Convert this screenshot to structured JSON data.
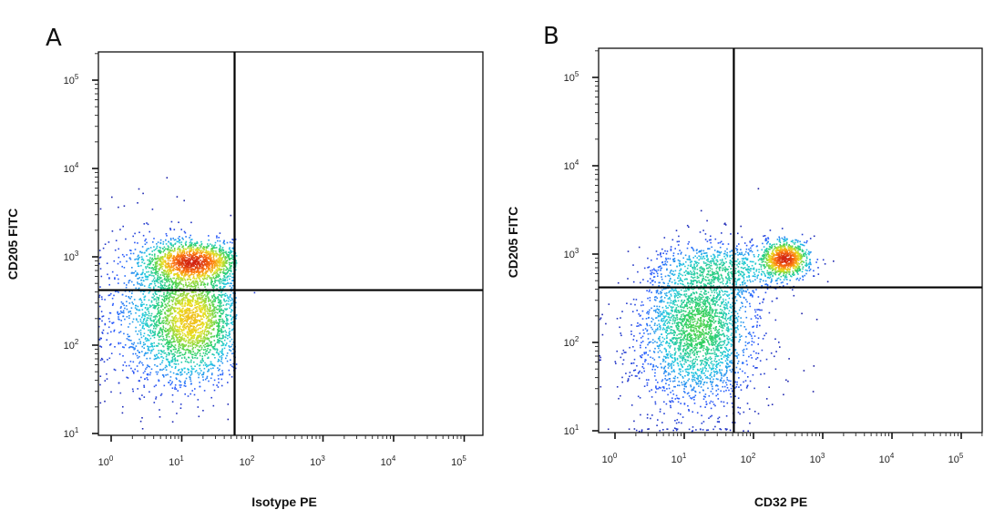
{
  "chart_data": [
    {
      "type": "scatter",
      "panel_label": "A",
      "xlabel": "Isotype PE",
      "ylabel": "CD205 FITC",
      "x_scale": "log",
      "y_scale": "log",
      "xlim": [
        0.66,
        180000
      ],
      "ylim": [
        10,
        210000
      ],
      "x_ticks": [
        {
          "base": "10",
          "exp": "0"
        },
        {
          "base": "10",
          "exp": "1"
        },
        {
          "base": "10",
          "exp": "2"
        },
        {
          "base": "10",
          "exp": "3"
        },
        {
          "base": "10",
          "exp": "4"
        },
        {
          "base": "10",
          "exp": "5"
        }
      ],
      "y_ticks": [
        {
          "base": "10",
          "exp": "1"
        },
        {
          "base": "10",
          "exp": "2"
        },
        {
          "base": "10",
          "exp": "3"
        },
        {
          "base": "10",
          "exp": "4"
        },
        {
          "base": "10",
          "exp": "5"
        }
      ],
      "quadrant_gate": {
        "x": 56,
        "y": 420
      },
      "color_map": [
        "#1a1aa0",
        "#2a5cff",
        "#20c8e0",
        "#30d060",
        "#e8e020",
        "#ff7a10",
        "#d02010"
      ],
      "populations": [
        {
          "center_x": 14,
          "center_y": 900,
          "spread_x_decades": 0.35,
          "spread_y_decades": 0.12,
          "weight": 0.3
        },
        {
          "center_x": 14,
          "center_y": 200,
          "spread_x_decades": 0.35,
          "spread_y_decades": 0.35,
          "weight": 0.55
        },
        {
          "center_x": 3,
          "center_y": 250,
          "spread_x_decades": 0.4,
          "spread_y_decades": 0.5,
          "weight": 0.15
        }
      ],
      "grid": false
    },
    {
      "type": "scatter",
      "panel_label": "B",
      "xlabel": "CD32 PE",
      "ylabel": "CD205 FITC",
      "x_scale": "log",
      "y_scale": "log",
      "xlim": [
        0.58,
        200000
      ],
      "ylim": [
        10,
        210000
      ],
      "x_ticks": [
        {
          "base": "10",
          "exp": "0"
        },
        {
          "base": "10",
          "exp": "1"
        },
        {
          "base": "10",
          "exp": "2"
        },
        {
          "base": "10",
          "exp": "3"
        },
        {
          "base": "10",
          "exp": "4"
        },
        {
          "base": "10",
          "exp": "5"
        }
      ],
      "y_ticks": [
        {
          "base": "10",
          "exp": "1"
        },
        {
          "base": "10",
          "exp": "2"
        },
        {
          "base": "10",
          "exp": "3"
        },
        {
          "base": "10",
          "exp": "4"
        },
        {
          "base": "10",
          "exp": "5"
        }
      ],
      "quadrant_gate": {
        "x": 52,
        "y": 420
      },
      "color_map": [
        "#1a1aa0",
        "#2a5cff",
        "#20c8e0",
        "#30d060",
        "#e8e020",
        "#ff7a10",
        "#d02010"
      ],
      "populations": [
        {
          "center_x": 280,
          "center_y": 900,
          "spread_x_decades": 0.18,
          "spread_y_decades": 0.11,
          "weight": 0.2
        },
        {
          "center_x": 40,
          "center_y": 700,
          "spread_x_decades": 0.5,
          "spread_y_decades": 0.15,
          "weight": 0.15
        },
        {
          "center_x": 16,
          "center_y": 160,
          "spread_x_decades": 0.4,
          "spread_y_decades": 0.4,
          "weight": 0.55
        },
        {
          "center_x": 10,
          "center_y": 60,
          "spread_x_decades": 0.6,
          "spread_y_decades": 0.5,
          "weight": 0.1
        }
      ],
      "grid": false
    }
  ]
}
